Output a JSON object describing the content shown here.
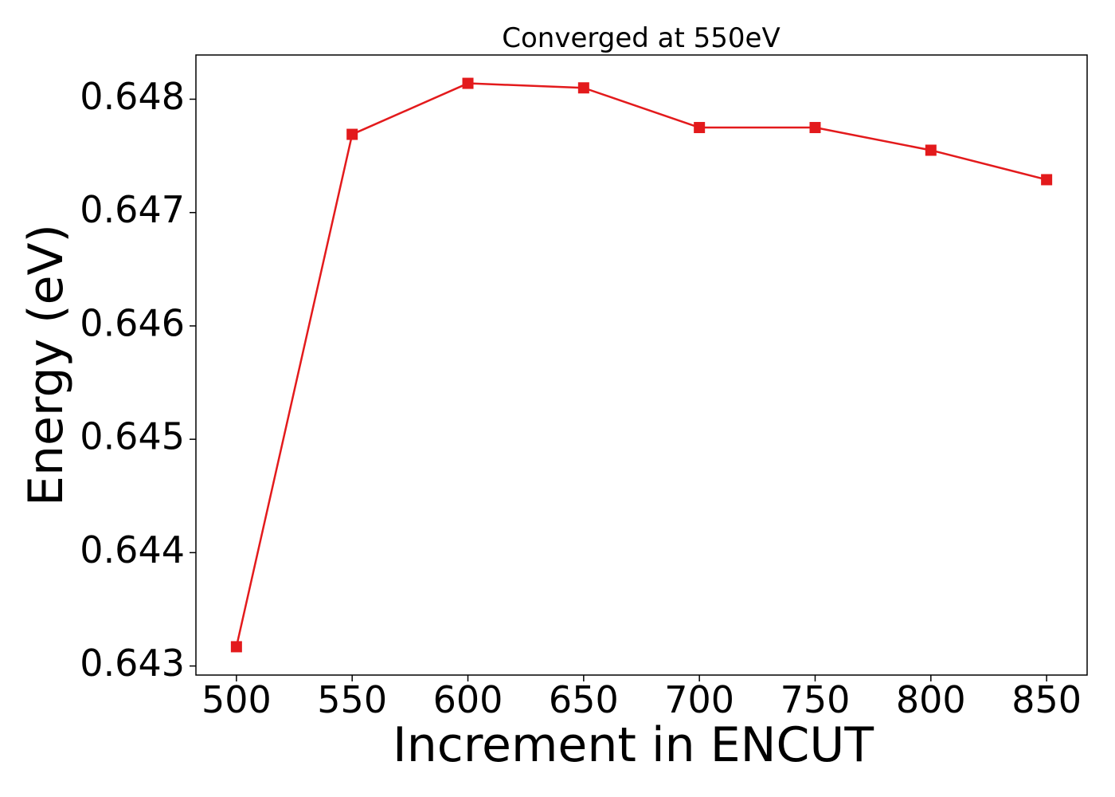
{
  "chart_data": {
    "type": "line",
    "title": "Converged at 550eV",
    "xlabel": "Increment in ENCUT",
    "ylabel": "Energy (eV)",
    "x": [
      500,
      550,
      600,
      650,
      700,
      750,
      800,
      850
    ],
    "series": [
      {
        "values": [
          0.64317,
          0.64769,
          0.64814,
          0.6481,
          0.64775,
          0.64775,
          0.64755,
          0.64729
        ],
        "color": "#e31a1c",
        "marker": "square"
      }
    ],
    "xticks": [
      "500",
      "550",
      "600",
      "650",
      "700",
      "750",
      "800",
      "850"
    ],
    "yticks": [
      "0.643",
      "0.644",
      "0.645",
      "0.646",
      "0.647",
      "0.648"
    ],
    "xlim": [
      482.5,
      867.5
    ],
    "ylim": [
      0.64292,
      0.64839
    ],
    "grid": false,
    "legend": "none"
  }
}
